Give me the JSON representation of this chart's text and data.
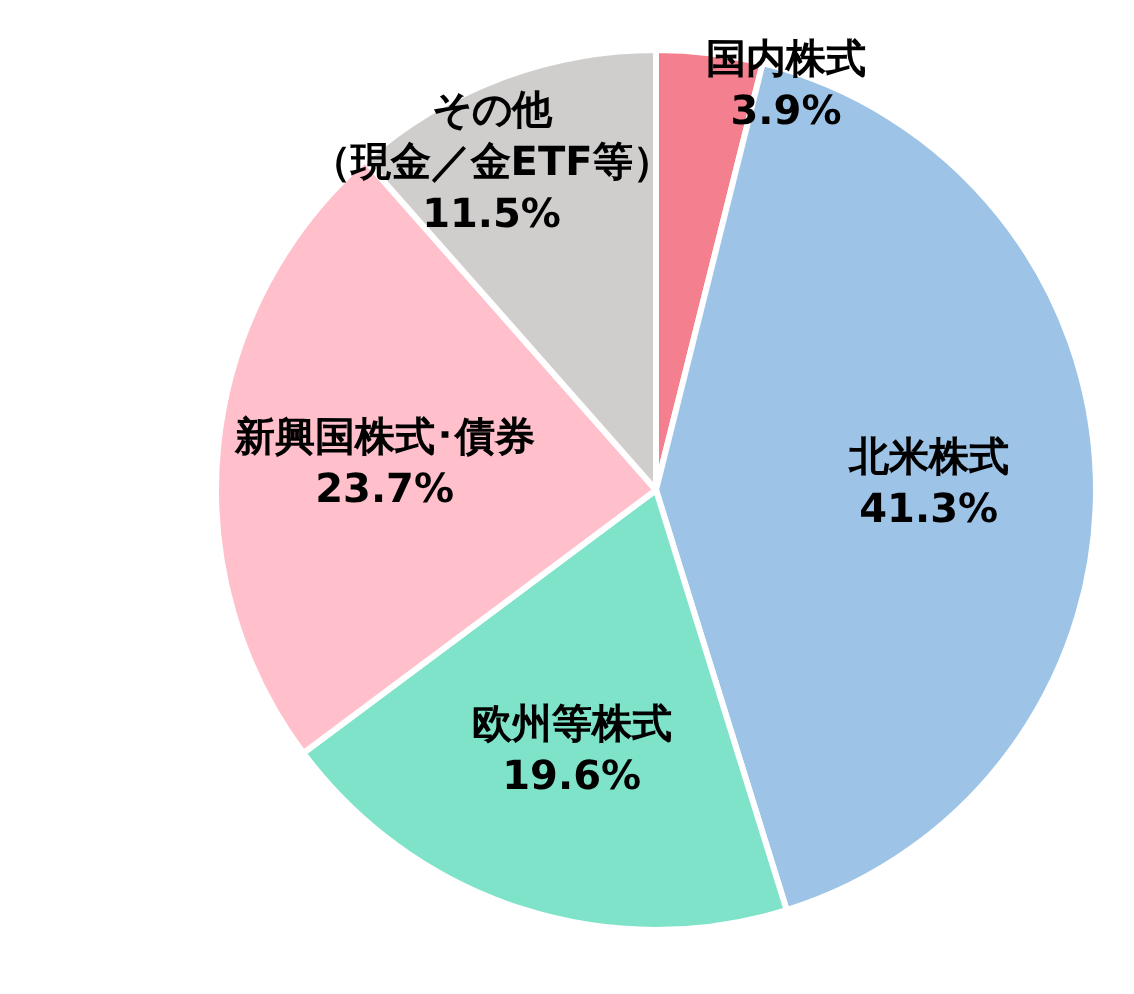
{
  "chart_data": {
    "type": "pie",
    "categories": [
      "国内株式",
      "北米株式",
      "欧州等株式",
      "新興国株式･債券",
      "その他（現金／金ETF等）"
    ],
    "values": [
      3.9,
      41.3,
      19.6,
      23.7,
      11.5
    ],
    "value_labels": [
      "3.9%",
      "41.3%",
      "19.6%",
      "23.7%",
      "11.5%"
    ],
    "colors": [
      "#f4808f",
      "#9dc3e6",
      "#7fe3c9",
      "#ffc0cb",
      "#d0cdcd"
    ]
  }
}
